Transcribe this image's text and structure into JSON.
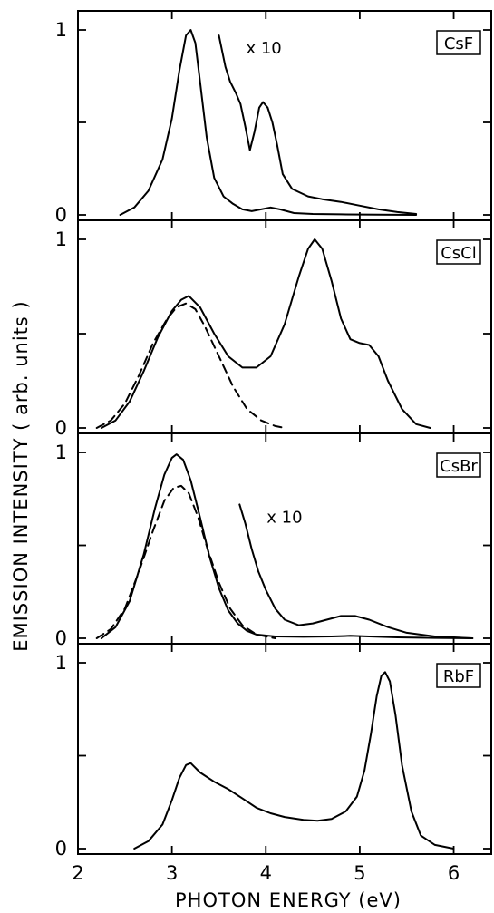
{
  "chart_data": {
    "type": "line",
    "x_axis": {
      "label": "PHOTON   ENERGY   (eV)",
      "range": [
        2,
        6.4
      ],
      "ticks": [
        "2",
        "3",
        "4",
        "5",
        "6"
      ]
    },
    "y_axis": {
      "label": "EMISSION   INTENSITY   ( arb. units )"
    },
    "panels": [
      {
        "label": "CsF",
        "ylim": [
          0,
          1.05
        ],
        "y_ticks": [
          "0",
          "1"
        ],
        "annotation": "x 10",
        "series": [
          {
            "style": "solid",
            "points": [
              [
                2.45,
                0
              ],
              [
                2.6,
                0.04
              ],
              [
                2.75,
                0.13
              ],
              [
                2.9,
                0.3
              ],
              [
                3.0,
                0.52
              ],
              [
                3.08,
                0.78
              ],
              [
                3.15,
                0.97
              ],
              [
                3.2,
                1.0
              ],
              [
                3.25,
                0.93
              ],
              [
                3.3,
                0.72
              ],
              [
                3.37,
                0.42
              ],
              [
                3.45,
                0.2
              ],
              [
                3.55,
                0.1
              ],
              [
                3.65,
                0.06
              ],
              [
                3.75,
                0.03
              ],
              [
                3.85,
                0.02
              ],
              [
                3.95,
                0.03
              ],
              [
                4.05,
                0.04
              ],
              [
                4.15,
                0.03
              ],
              [
                4.3,
                0.01
              ],
              [
                4.5,
                0.005
              ],
              [
                4.8,
                0.003
              ],
              [
                5.2,
                0.001
              ],
              [
                5.6,
                0
              ]
            ]
          },
          {
            "style": "solid",
            "scale": "x10",
            "points": [
              [
                3.5,
                0.97
              ],
              [
                3.57,
                0.8
              ],
              [
                3.62,
                0.72
              ],
              [
                3.68,
                0.66
              ],
              [
                3.73,
                0.6
              ],
              [
                3.78,
                0.48
              ],
              [
                3.83,
                0.35
              ],
              [
                3.88,
                0.45
              ],
              [
                3.93,
                0.58
              ],
              [
                3.97,
                0.61
              ],
              [
                4.02,
                0.58
              ],
              [
                4.07,
                0.5
              ],
              [
                4.12,
                0.38
              ],
              [
                4.18,
                0.22
              ],
              [
                4.28,
                0.14
              ],
              [
                4.45,
                0.1
              ],
              [
                4.6,
                0.085
              ],
              [
                4.8,
                0.07
              ],
              [
                5.0,
                0.05
              ],
              [
                5.2,
                0.03
              ],
              [
                5.4,
                0.015
              ],
              [
                5.6,
                0.005
              ]
            ]
          }
        ]
      },
      {
        "label": "CsCl",
        "ylim": [
          0,
          1.05
        ],
        "y_ticks": [
          "0",
          "1"
        ],
        "series": [
          {
            "style": "solid",
            "points": [
              [
                2.25,
                0
              ],
              [
                2.4,
                0.04
              ],
              [
                2.55,
                0.14
              ],
              [
                2.7,
                0.3
              ],
              [
                2.85,
                0.48
              ],
              [
                3.0,
                0.62
              ],
              [
                3.1,
                0.68
              ],
              [
                3.18,
                0.7
              ],
              [
                3.3,
                0.64
              ],
              [
                3.45,
                0.5
              ],
              [
                3.6,
                0.38
              ],
              [
                3.75,
                0.32
              ],
              [
                3.9,
                0.32
              ],
              [
                4.05,
                0.38
              ],
              [
                4.2,
                0.55
              ],
              [
                4.35,
                0.8
              ],
              [
                4.45,
                0.95
              ],
              [
                4.52,
                1.0
              ],
              [
                4.6,
                0.95
              ],
              [
                4.7,
                0.78
              ],
              [
                4.8,
                0.58
              ],
              [
                4.9,
                0.47
              ],
              [
                5.0,
                0.45
              ],
              [
                5.1,
                0.44
              ],
              [
                5.2,
                0.38
              ],
              [
                5.3,
                0.25
              ],
              [
                5.45,
                0.1
              ],
              [
                5.6,
                0.02
              ],
              [
                5.75,
                0
              ]
            ]
          },
          {
            "style": "dashed",
            "points": [
              [
                2.2,
                0
              ],
              [
                2.35,
                0.04
              ],
              [
                2.5,
                0.13
              ],
              [
                2.65,
                0.28
              ],
              [
                2.8,
                0.45
              ],
              [
                2.95,
                0.58
              ],
              [
                3.05,
                0.64
              ],
              [
                3.15,
                0.66
              ],
              [
                3.25,
                0.63
              ],
              [
                3.35,
                0.54
              ],
              [
                3.5,
                0.38
              ],
              [
                3.65,
                0.22
              ],
              [
                3.8,
                0.1
              ],
              [
                3.95,
                0.04
              ],
              [
                4.1,
                0.01
              ],
              [
                4.2,
                0
              ]
            ]
          }
        ]
      },
      {
        "label": "CsBr",
        "ylim": [
          0,
          1.05
        ],
        "y_ticks": [
          "0",
          "1"
        ],
        "annotation": "x 10",
        "series": [
          {
            "style": "solid",
            "points": [
              [
                2.25,
                0
              ],
              [
                2.4,
                0.06
              ],
              [
                2.55,
                0.2
              ],
              [
                2.7,
                0.45
              ],
              [
                2.82,
                0.7
              ],
              [
                2.92,
                0.88
              ],
              [
                3.0,
                0.97
              ],
              [
                3.05,
                0.99
              ],
              [
                3.12,
                0.96
              ],
              [
                3.2,
                0.85
              ],
              [
                3.3,
                0.65
              ],
              [
                3.4,
                0.44
              ],
              [
                3.5,
                0.27
              ],
              [
                3.6,
                0.15
              ],
              [
                3.7,
                0.08
              ],
              [
                3.8,
                0.04
              ],
              [
                3.9,
                0.02
              ],
              [
                4.1,
                0.01
              ],
              [
                4.4,
                0.008
              ],
              [
                4.7,
                0.01
              ],
              [
                4.9,
                0.013
              ],
              [
                5.1,
                0.01
              ],
              [
                5.4,
                0.005
              ],
              [
                5.8,
                0.002
              ],
              [
                6.2,
                0
              ]
            ]
          },
          {
            "style": "dashed",
            "points": [
              [
                2.2,
                0
              ],
              [
                2.35,
                0.05
              ],
              [
                2.5,
                0.16
              ],
              [
                2.65,
                0.36
              ],
              [
                2.8,
                0.58
              ],
              [
                2.92,
                0.74
              ],
              [
                3.02,
                0.81
              ],
              [
                3.1,
                0.82
              ],
              [
                3.18,
                0.78
              ],
              [
                3.28,
                0.65
              ],
              [
                3.38,
                0.48
              ],
              [
                3.5,
                0.3
              ],
              [
                3.62,
                0.16
              ],
              [
                3.75,
                0.07
              ],
              [
                3.9,
                0.02
              ],
              [
                4.1,
                0
              ]
            ]
          },
          {
            "style": "solid",
            "scale": "x10",
            "points": [
              [
                3.72,
                0.72
              ],
              [
                3.78,
                0.62
              ],
              [
                3.85,
                0.48
              ],
              [
                3.92,
                0.36
              ],
              [
                4.0,
                0.26
              ],
              [
                4.1,
                0.16
              ],
              [
                4.2,
                0.1
              ],
              [
                4.35,
                0.07
              ],
              [
                4.5,
                0.08
              ],
              [
                4.65,
                0.1
              ],
              [
                4.8,
                0.12
              ],
              [
                4.95,
                0.12
              ],
              [
                5.1,
                0.1
              ],
              [
                5.3,
                0.06
              ],
              [
                5.5,
                0.03
              ],
              [
                5.8,
                0.01
              ],
              [
                6.2,
                0
              ]
            ]
          }
        ]
      },
      {
        "label": "RbF",
        "ylim": [
          0,
          1.05
        ],
        "y_ticks": [
          "0",
          "1"
        ],
        "series": [
          {
            "style": "solid",
            "points": [
              [
                2.6,
                0
              ],
              [
                2.75,
                0.04
              ],
              [
                2.9,
                0.13
              ],
              [
                3.0,
                0.26
              ],
              [
                3.08,
                0.38
              ],
              [
                3.15,
                0.45
              ],
              [
                3.2,
                0.46
              ],
              [
                3.3,
                0.41
              ],
              [
                3.45,
                0.36
              ],
              [
                3.6,
                0.32
              ],
              [
                3.75,
                0.27
              ],
              [
                3.9,
                0.22
              ],
              [
                4.05,
                0.19
              ],
              [
                4.2,
                0.17
              ],
              [
                4.4,
                0.155
              ],
              [
                4.55,
                0.15
              ],
              [
                4.7,
                0.16
              ],
              [
                4.85,
                0.2
              ],
              [
                4.97,
                0.28
              ],
              [
                5.05,
                0.42
              ],
              [
                5.12,
                0.62
              ],
              [
                5.18,
                0.82
              ],
              [
                5.23,
                0.93
              ],
              [
                5.27,
                0.95
              ],
              [
                5.32,
                0.9
              ],
              [
                5.38,
                0.72
              ],
              [
                5.45,
                0.45
              ],
              [
                5.55,
                0.2
              ],
              [
                5.65,
                0.07
              ],
              [
                5.8,
                0.02
              ],
              [
                6.0,
                0
              ]
            ]
          }
        ]
      }
    ]
  }
}
